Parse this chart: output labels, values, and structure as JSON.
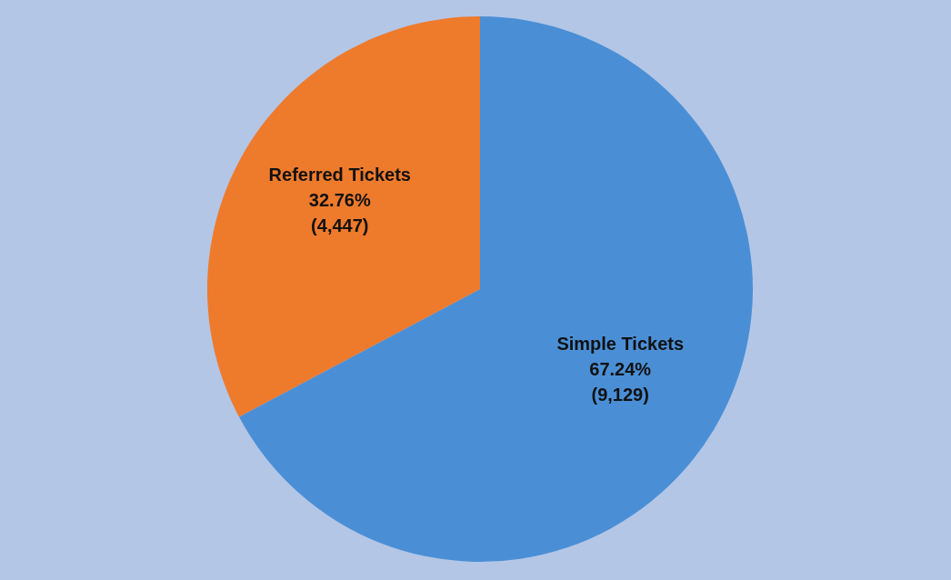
{
  "chart_data": {
    "type": "pie",
    "categories": [
      "Simple Tickets",
      "Referred Tickets"
    ],
    "values": [
      9129,
      4447
    ],
    "colors": [
      "#4a8fd6",
      "#ee7a2c"
    ],
    "value_labels": [
      "67.24%\n(9,129)",
      "32.76%\n(4,447)"
    ]
  }
}
